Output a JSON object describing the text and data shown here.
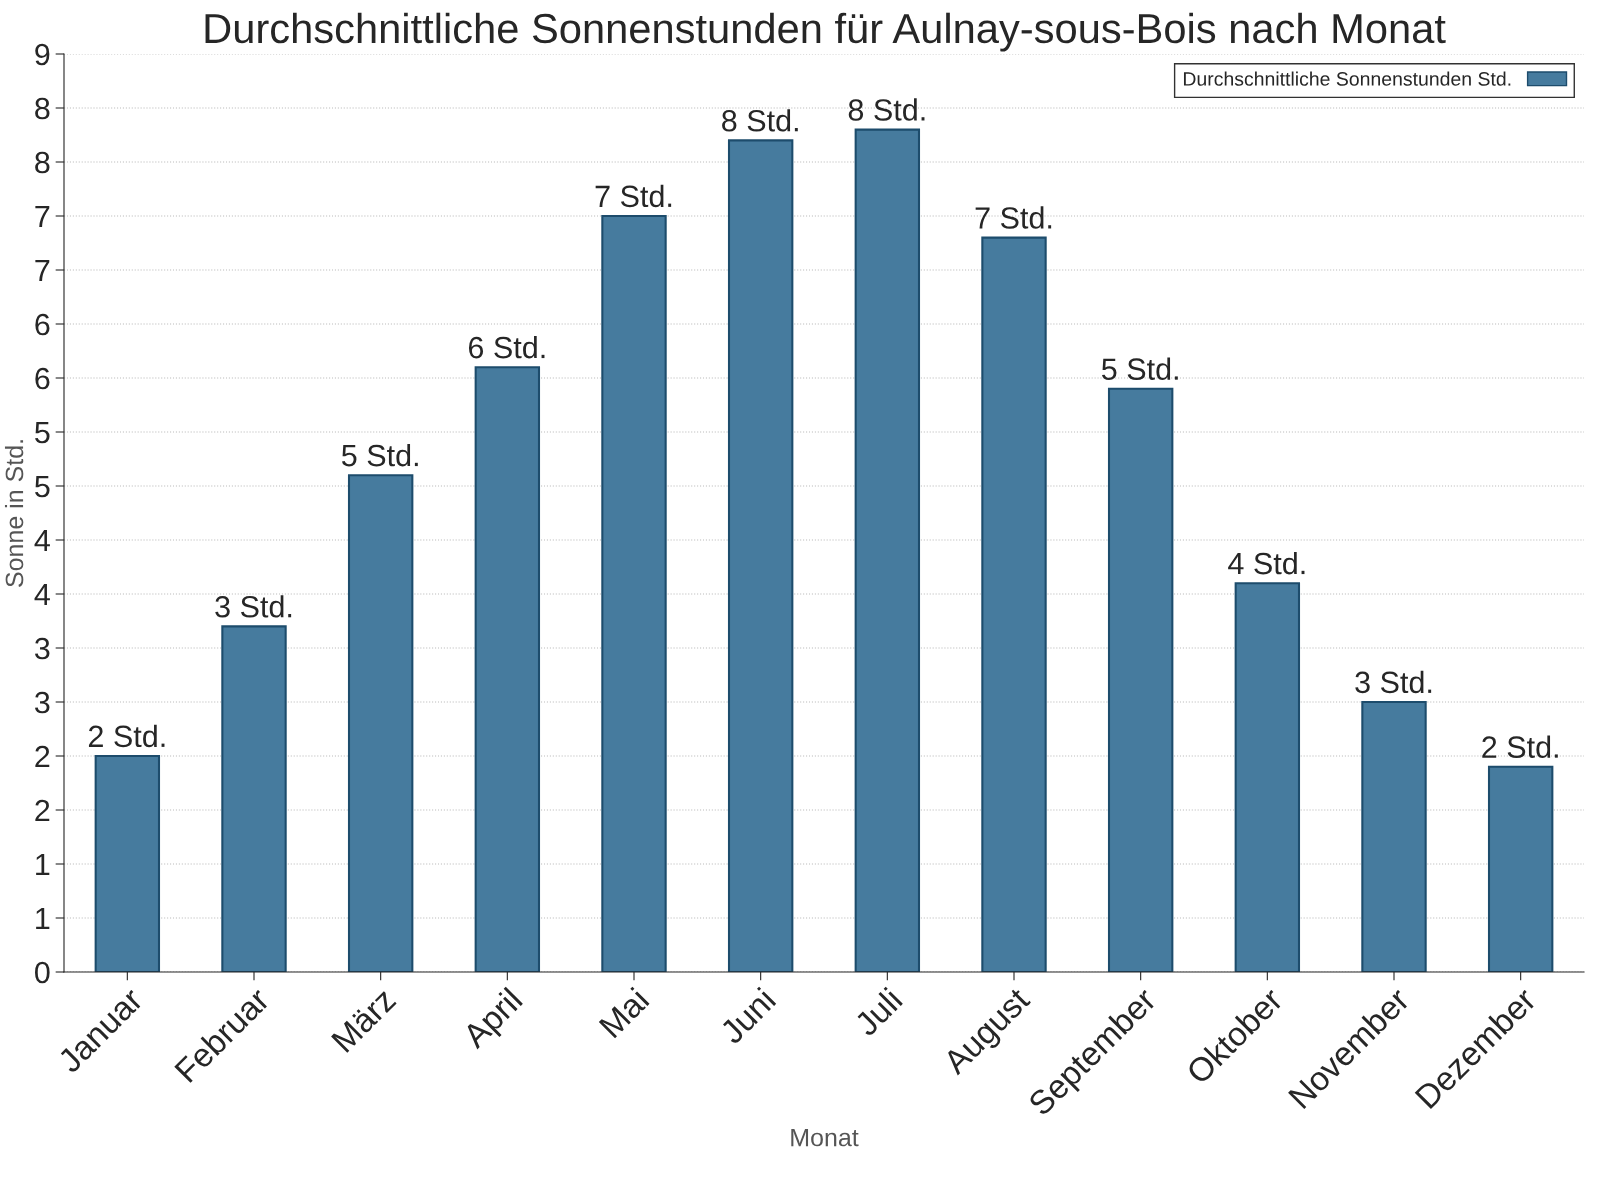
{
  "chart_data": {
    "type": "bar",
    "title": "Durchschnittliche Sonnenstunden für Aulnay-sous-Bois nach Monat",
    "xlabel": "Monat",
    "ylabel": "Sonne in Std.",
    "categories": [
      "Januar",
      "Februar",
      "März",
      "April",
      "Mai",
      "Juni",
      "Juli",
      "August",
      "September",
      "Oktober",
      "November",
      "Dezember"
    ],
    "series": [
      {
        "name": "Durchschnittliche Sonnenstunden Std.",
        "color": "#467b9e",
        "values": [
          2.0,
          3.2,
          4.6,
          5.6,
          7.0,
          7.7,
          7.8,
          6.8,
          5.4,
          3.6,
          2.5,
          1.9
        ],
        "value_labels": [
          "2 Std.",
          "3 Std.",
          "5 Std.",
          "6 Std.",
          "7 Std.",
          "8 Std.",
          "8 Std.",
          "7 Std.",
          "5 Std.",
          "4 Std.",
          "3 Std.",
          "2 Std."
        ]
      }
    ],
    "ylim": [
      0,
      8.5
    ],
    "yticks": [
      0,
      {
        "value": 0.5,
        "label": "1"
      },
      1,
      {
        "value": 1.5,
        "label": "2"
      },
      2,
      {
        "value": 2.5,
        "label": "3"
      },
      3,
      {
        "value": 3.5,
        "label": "4"
      },
      4,
      {
        "value": 4.5,
        "label": "5"
      },
      5,
      {
        "value": 5.5,
        "label": "6"
      },
      6,
      {
        "value": 6.5,
        "label": "7"
      },
      7,
      {
        "value": 7.5,
        "label": "8"
      },
      8,
      {
        "value": 8.5,
        "label": "9"
      }
    ],
    "grid": "y",
    "legend": "top right"
  }
}
